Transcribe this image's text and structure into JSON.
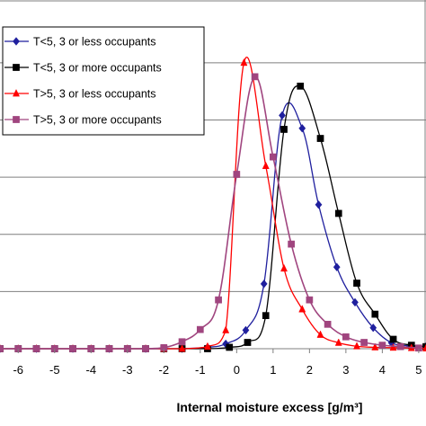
{
  "chart_data": {
    "type": "line",
    "xlabel": "Internal moisture excess [g/m³]",
    "ylabel": "",
    "title": "",
    "xlim": [
      -6.5,
      5.2
    ],
    "ylim": [
      0,
      100
    ],
    "x_ticks": [
      -6,
      -5,
      -4,
      -3,
      -2,
      -1,
      0,
      1,
      2,
      3,
      4,
      5
    ],
    "x_tick_labels": [
      "-6",
      "-5",
      "-4",
      "-3",
      "-2",
      "-1",
      "0",
      "1",
      "2",
      "3",
      "4",
      "5"
    ],
    "y_gridlines": [
      16.4,
      32.8,
      49.2,
      65.6,
      82.0
    ],
    "grid": "horizontal",
    "legend_position": "top-left",
    "series": [
      {
        "name": "T<5, 3 or less occupants",
        "color": "#1f1f9e",
        "marker": "diamond",
        "x": [
          -6.5,
          -6.0,
          -5.5,
          -5.0,
          -4.5,
          -4.0,
          -3.5,
          -3.0,
          -2.5,
          -2.0,
          -1.5,
          -0.8,
          -0.3,
          0.25,
          0.75,
          1.25,
          1.8,
          2.25,
          2.75,
          3.25,
          3.75,
          4.25,
          4.75,
          5.2
        ],
        "y": [
          0,
          0,
          0,
          0,
          0,
          0,
          0,
          0,
          0,
          0,
          0,
          0.4,
          1.4,
          5.3,
          18.6,
          66.9,
          63.2,
          41.3,
          23.4,
          13.3,
          6.0,
          1.7,
          0.8,
          0.6
        ]
      },
      {
        "name": "T<5, 3 or more occupants",
        "color": "#000000",
        "marker": "square",
        "x": [
          -6.5,
          -6.0,
          -5.5,
          -5.0,
          -4.5,
          -4.0,
          -3.5,
          -3.0,
          -2.5,
          -2.0,
          -1.5,
          -0.8,
          -0.2,
          0.3,
          0.8,
          1.3,
          1.75,
          2.3,
          2.8,
          3.3,
          3.8,
          4.3,
          4.8,
          5.2
        ],
        "y": [
          0,
          0,
          0,
          0,
          0,
          0,
          0,
          0,
          0,
          0,
          0,
          0,
          0.4,
          1.8,
          9.5,
          62.9,
          75.3,
          60.3,
          38.8,
          18.8,
          9.9,
          2.7,
          1.0,
          0.6
        ]
      },
      {
        "name": "T>5, 3 or less occupants",
        "color": "#ff0000",
        "marker": "triangle",
        "x": [
          -6.5,
          -6.0,
          -5.5,
          -5.0,
          -4.5,
          -4.0,
          -3.5,
          -3.0,
          -2.5,
          -2.0,
          -1.5,
          -0.8,
          -0.3,
          0.2,
          0.8,
          1.3,
          1.8,
          2.3,
          2.8,
          3.3,
          3.8,
          4.3,
          4.8,
          5.2
        ],
        "y": [
          0,
          0,
          0,
          0,
          0,
          0,
          0,
          0,
          0,
          0,
          0,
          0.6,
          5.3,
          82.0,
          52.4,
          23.0,
          11.3,
          4.0,
          1.7,
          0.7,
          0.4,
          0.3,
          0.2,
          0.1
        ]
      },
      {
        "name": "T>5, 3 or more occupants",
        "color": "#a0457f",
        "marker": "square",
        "x": [
          -6.5,
          -6.0,
          -5.5,
          -5.0,
          -4.5,
          -4.0,
          -3.5,
          -3.0,
          -2.5,
          -2.0,
          -1.5,
          -1.0,
          -0.5,
          0.0,
          0.5,
          1.0,
          1.5,
          2.0,
          2.5,
          3.0,
          3.5,
          4.0,
          4.5,
          5.0
        ],
        "y": [
          0,
          0,
          0,
          0,
          0,
          0,
          0,
          0,
          0,
          0.3,
          2.0,
          5.5,
          14.0,
          50.0,
          78.0,
          55.0,
          30.0,
          14.0,
          7.0,
          3.4,
          1.8,
          1.0,
          0.6,
          0.2
        ]
      }
    ]
  }
}
